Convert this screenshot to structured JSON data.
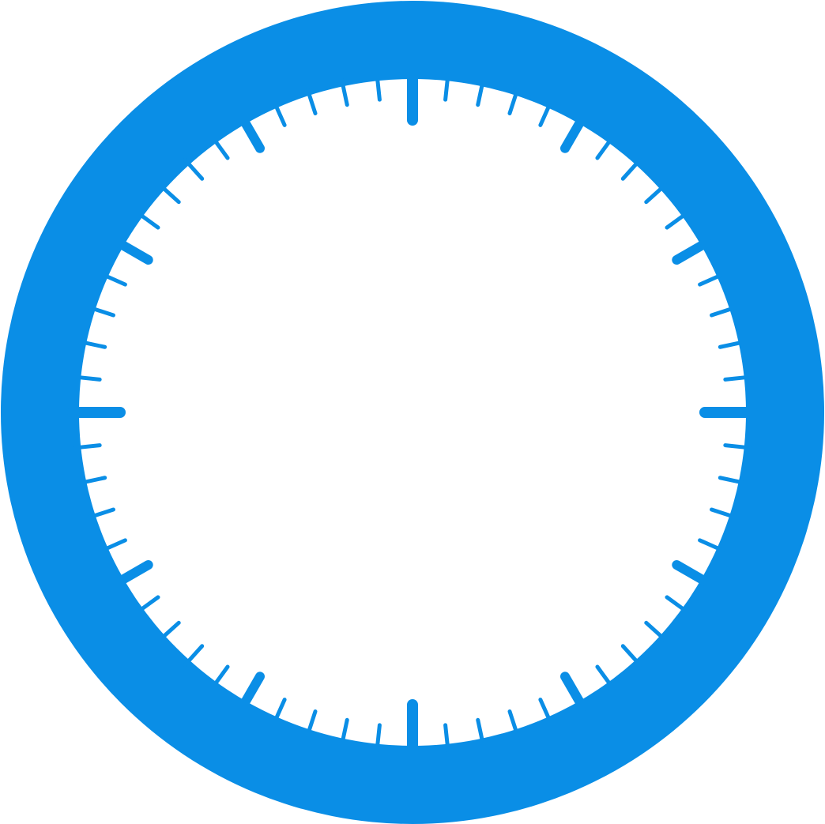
{
  "clock_face": {
    "ring_color": "#0a8ee6",
    "tick_color": "#0a8ee6",
    "face_color": "#ffffff",
    "minute_tick_count": 60,
    "five_minute_marks": true,
    "quarter_hour_marks": true
  }
}
